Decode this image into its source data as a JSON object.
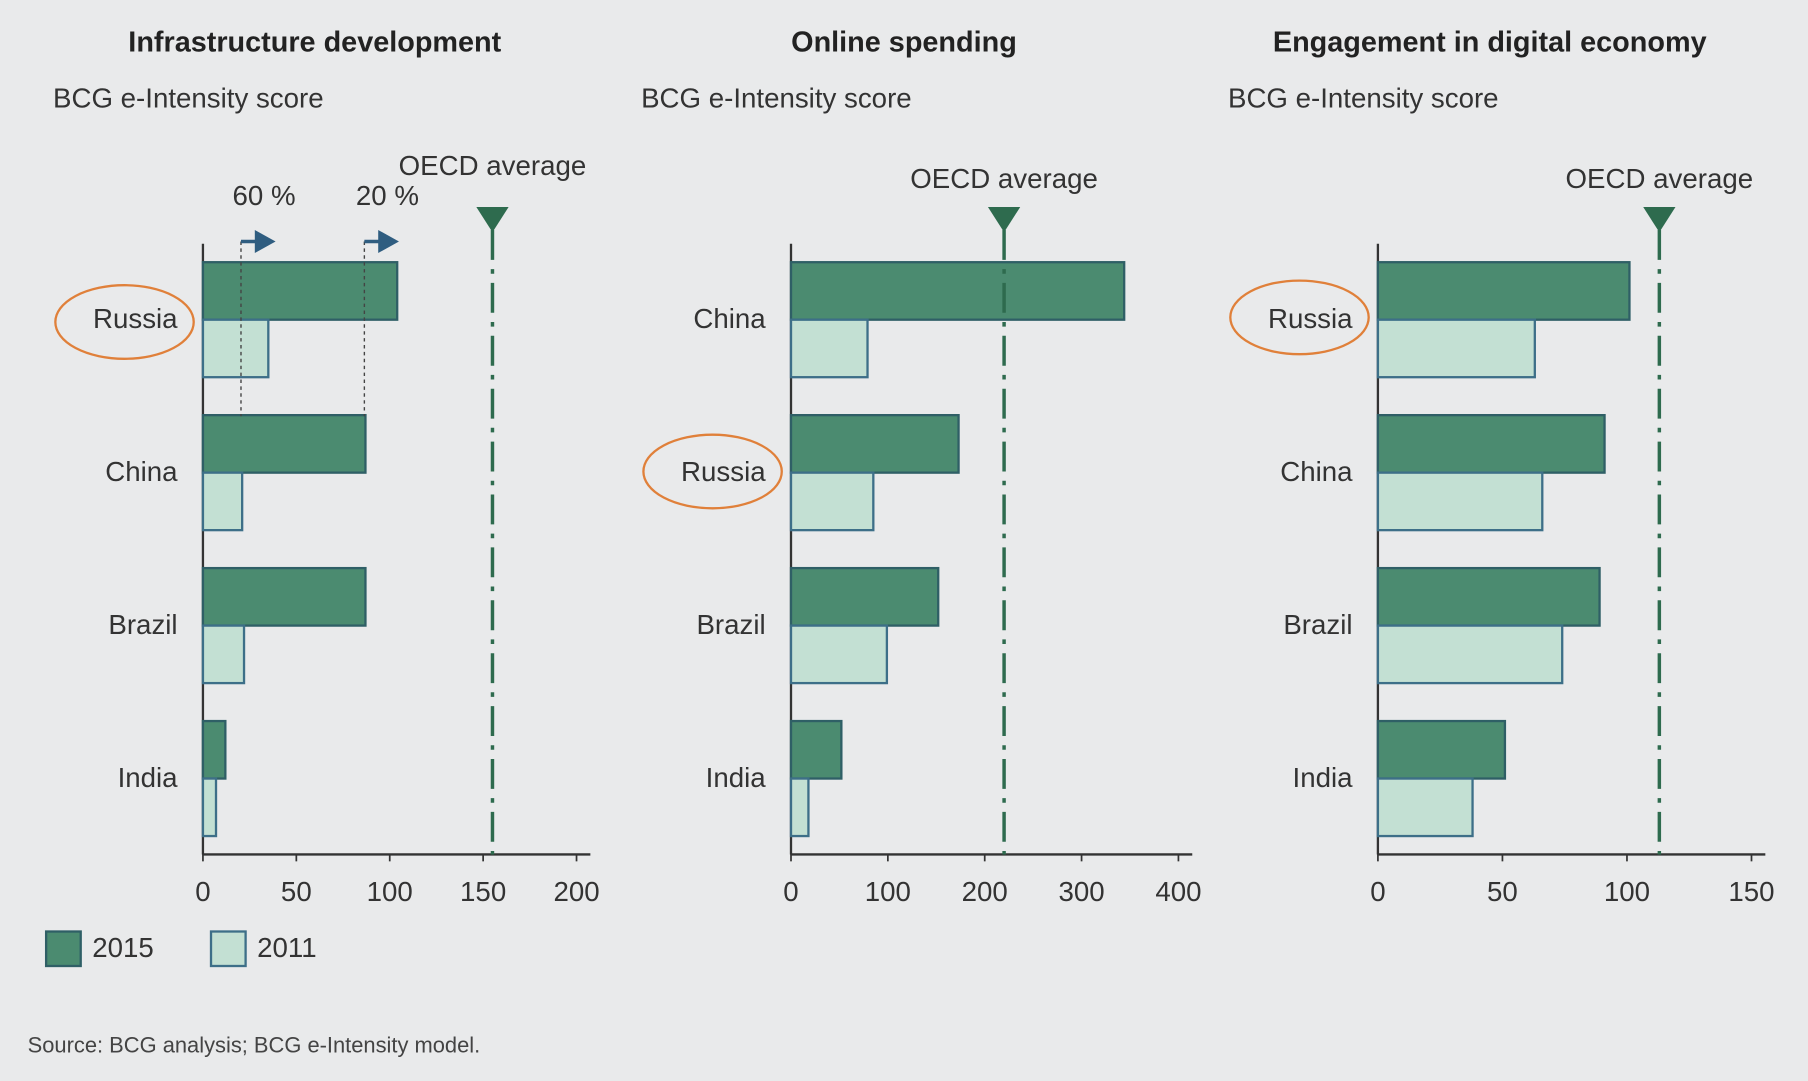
{
  "chart_data": [
    {
      "type": "bar",
      "orientation": "horizontal",
      "title": "Infrastructure development",
      "subtitle": "BCG e-Intensity score",
      "categories": [
        "Russia",
        "China",
        "Brazil",
        "India"
      ],
      "series": [
        {
          "name": "2015",
          "color": "#4b8b70",
          "values": [
            104,
            87,
            87,
            12
          ]
        },
        {
          "name": "2011",
          "color": "#c3e0d3",
          "values": [
            35,
            21,
            22,
            7
          ]
        }
      ],
      "xlim": [
        0,
        200
      ],
      "xticks": [
        0,
        50,
        100,
        150,
        200
      ],
      "reference_line": {
        "label": "OECD average",
        "value": 155
      },
      "annotations": [
        "60 %",
        "20 %"
      ]
    },
    {
      "type": "bar",
      "orientation": "horizontal",
      "title": "Online spending",
      "subtitle": "BCG e-Intensity score",
      "categories": [
        "China",
        "Russia",
        "Brazil",
        "India"
      ],
      "series": [
        {
          "name": "2015",
          "color": "#4b8b70",
          "values": [
            344,
            173,
            152,
            52
          ]
        },
        {
          "name": "2011",
          "color": "#c3e0d3",
          "values": [
            79,
            85,
            99,
            18
          ]
        }
      ],
      "xlim": [
        0,
        400
      ],
      "xticks": [
        0,
        100,
        200,
        300,
        400
      ],
      "reference_line": {
        "label": "OECD average",
        "value": 220
      }
    },
    {
      "type": "bar",
      "orientation": "horizontal",
      "title": "Engagement in digital economy",
      "subtitle": "BCG e-Intensity score",
      "categories": [
        "Russia",
        "China",
        "Brazil",
        "India"
      ],
      "series": [
        {
          "name": "2015",
          "color": "#4b8b70",
          "values": [
            101,
            91,
            89,
            51
          ]
        },
        {
          "name": "2011",
          "color": "#c3e0d3",
          "values": [
            63,
            66,
            74,
            38
          ]
        }
      ],
      "xlim": [
        0,
        150
      ],
      "xticks": [
        0,
        50,
        100,
        150
      ],
      "reference_line": {
        "label": "OECD average",
        "value": 113
      }
    }
  ],
  "source": "Source: BCG analysis; BCG e-Intensity model."
}
